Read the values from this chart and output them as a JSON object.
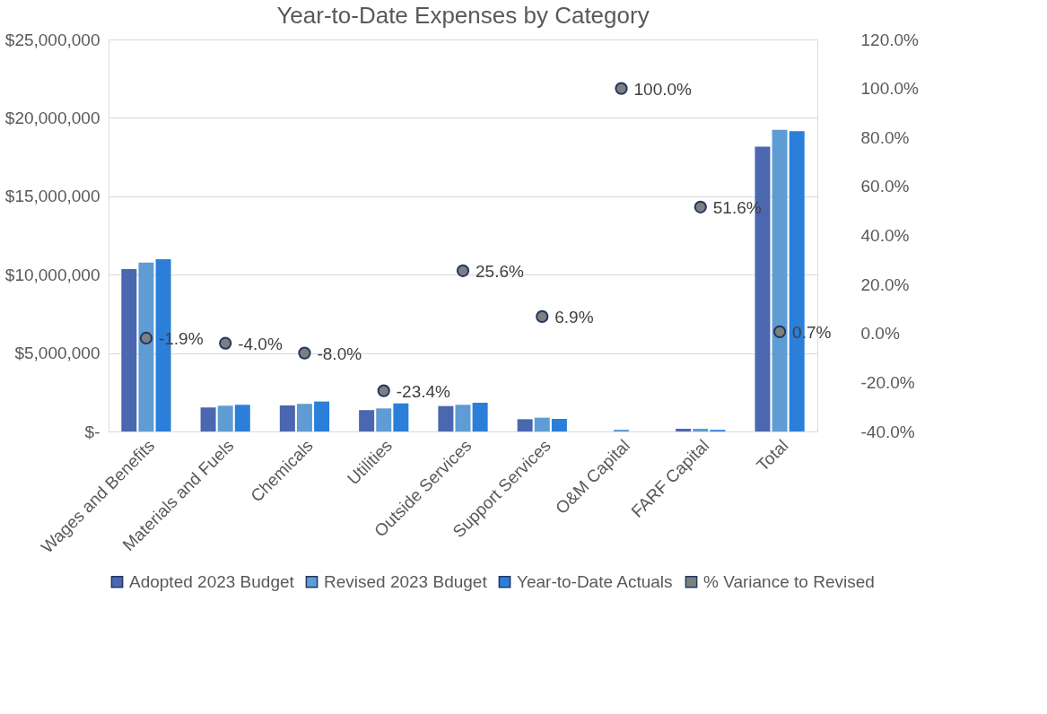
{
  "chart_data": {
    "type": "bar",
    "title": "Year-to-Date Expenses by Category",
    "categories": [
      "Wages and Benefits",
      "Materials and Fuels",
      "Chemicals",
      "Utilities",
      "Outside Services",
      "Support Services",
      "O&M Capital",
      "FARF Capital",
      "Total"
    ],
    "series": [
      {
        "name": "Adopted 2023 Budget",
        "color": "#4a67b0",
        "values": [
          10350000,
          1530000,
          1660000,
          1360000,
          1620000,
          780000,
          0,
          170000,
          18170000
        ]
      },
      {
        "name": "Revised 2023 Bduget",
        "color": "#5f9cd3",
        "values": [
          10770000,
          1640000,
          1760000,
          1470000,
          1700000,
          880000,
          110000,
          170000,
          19240000
        ]
      },
      {
        "name": "Year-to-Date Actuals",
        "color": "#2b7fd8",
        "values": [
          10980000,
          1700000,
          1910000,
          1790000,
          1830000,
          800000,
          0,
          100000,
          19150000
        ]
      },
      {
        "name": "% Variance to Revised",
        "type": "scatter",
        "axis": "y2",
        "color": "#7f7f7f",
        "values": [
          -1.9,
          -4.0,
          -8.0,
          -23.4,
          25.6,
          6.9,
          100.0,
          51.6,
          0.7
        ],
        "value_labels": [
          "-1.9%",
          "-4.0%",
          "-8.0%",
          "-23.4%",
          "25.6%",
          "6.9%",
          "100.0%",
          "51.6%",
          "0.7%"
        ]
      }
    ],
    "ylim": [
      0,
      25000000
    ],
    "yticks": [
      {
        "value": 0,
        "label": "$-"
      },
      {
        "value": 5000000,
        "label": "$5,000,000"
      },
      {
        "value": 10000000,
        "label": "$10,000,000"
      },
      {
        "value": 15000000,
        "label": "$15,000,000"
      },
      {
        "value": 20000000,
        "label": "$20,000,000"
      },
      {
        "value": 25000000,
        "label": "$25,000,000"
      }
    ],
    "y2lim": [
      -40,
      120
    ],
    "y2ticks": [
      {
        "value": -40,
        "label": "-40.0%"
      },
      {
        "value": -20,
        "label": "-20.0%"
      },
      {
        "value": 0,
        "label": "0.0%"
      },
      {
        "value": 20,
        "label": "20.0%"
      },
      {
        "value": 40,
        "label": "40.0%"
      },
      {
        "value": 60,
        "label": "60.0%"
      },
      {
        "value": 80,
        "label": "80.0%"
      },
      {
        "value": 100,
        "label": "100.0%"
      },
      {
        "value": 120,
        "label": "120.0%"
      }
    ],
    "grid": "y",
    "legend": "bottom",
    "marker": "circle"
  }
}
